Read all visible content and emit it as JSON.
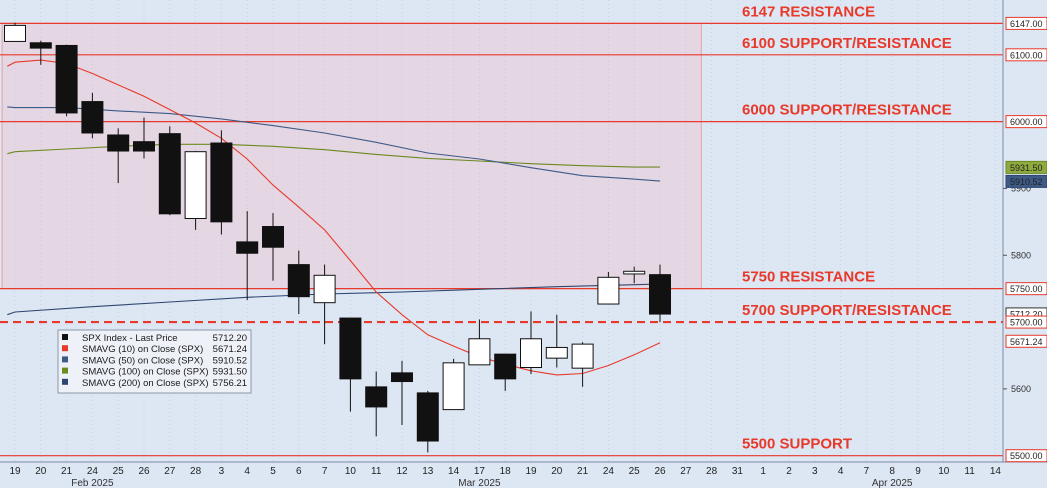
{
  "chart_data": {
    "type": "candlestick",
    "ylim": [
      5490,
      6160
    ],
    "x_labels": [
      "19",
      "20",
      "21",
      "24",
      "25",
      "26",
      "27",
      "28",
      "3",
      "4",
      "5",
      "6",
      "7",
      "10",
      "11",
      "12",
      "13",
      "14",
      "17",
      "18",
      "19",
      "20",
      "21",
      "24",
      "25",
      "26",
      "27",
      "28",
      "31",
      "1",
      "2",
      "3",
      "4",
      "7",
      "8",
      "9",
      "10",
      "11",
      "14"
    ],
    "months": [
      {
        "label": "Feb 2025",
        "at": 3
      },
      {
        "label": "Mar 2025",
        "at": 18
      },
      {
        "label": "Apr 2025",
        "at": 34
      }
    ],
    "candles": [
      {
        "date": "19",
        "o": 6120,
        "h": 6148,
        "l": 6120,
        "c": 6144
      },
      {
        "date": "20",
        "o": 6118,
        "h": 6121,
        "l": 6085,
        "c": 6110
      },
      {
        "date": "21",
        "o": 6114,
        "h": 6115,
        "l": 6008,
        "c": 6013
      },
      {
        "date": "24",
        "o": 6030,
        "h": 6043,
        "l": 5975,
        "c": 5983
      },
      {
        "date": "25",
        "o": 5980,
        "h": 5990,
        "l": 5908,
        "c": 5956
      },
      {
        "date": "26",
        "o": 5970,
        "h": 6006,
        "l": 5945,
        "c": 5956
      },
      {
        "date": "27",
        "o": 5982,
        "h": 5993,
        "l": 5860,
        "c": 5862
      },
      {
        "date": "28",
        "o": 5855,
        "h": 5956,
        "l": 5838,
        "c": 5955
      },
      {
        "date": "3",
        "o": 5968,
        "h": 5987,
        "l": 5831,
        "c": 5850
      },
      {
        "date": "4",
        "o": 5820,
        "h": 5866,
        "l": 5733,
        "c": 5803
      },
      {
        "date": "5",
        "o": 5843,
        "h": 5863,
        "l": 5762,
        "c": 5812
      },
      {
        "date": "6",
        "o": 5786,
        "h": 5807,
        "l": 5712,
        "c": 5738
      },
      {
        "date": "7",
        "o": 5729,
        "h": 5786,
        "l": 5667,
        "c": 5770
      },
      {
        "date": "10",
        "o": 5706,
        "h": 5706,
        "l": 5566,
        "c": 5615
      },
      {
        "date": "11",
        "o": 5603,
        "h": 5626,
        "l": 5529,
        "c": 5573
      },
      {
        "date": "12",
        "o": 5624,
        "h": 5642,
        "l": 5546,
        "c": 5611
      },
      {
        "date": "13",
        "o": 5594,
        "h": 5597,
        "l": 5505,
        "c": 5522
      },
      {
        "date": "14",
        "o": 5569,
        "h": 5645,
        "l": 5569,
        "c": 5639
      },
      {
        "date": "17",
        "o": 5636,
        "h": 5704,
        "l": 5636,
        "c": 5675
      },
      {
        "date": "18",
        "o": 5652,
        "h": 5652,
        "l": 5597,
        "c": 5615
      },
      {
        "date": "19",
        "o": 5632,
        "h": 5716,
        "l": 5622,
        "c": 5675
      },
      {
        "date": "20",
        "o": 5646,
        "h": 5711,
        "l": 5632,
        "c": 5662
      },
      {
        "date": "21",
        "o": 5631,
        "h": 5670,
        "l": 5603,
        "c": 5667
      },
      {
        "date": "24",
        "o": 5727,
        "h": 5775,
        "l": 5727,
        "c": 5767
      },
      {
        "date": "25",
        "o": 5772,
        "h": 5783,
        "l": 5758,
        "c": 5776
      },
      {
        "date": "26",
        "o": 5771,
        "h": 5786,
        "l": 5700,
        "c": 5712
      }
    ],
    "sma10": [
      [
        -0.3,
        6083
      ],
      [
        0,
        6089
      ],
      [
        1,
        6092
      ],
      [
        2,
        6087
      ],
      [
        3,
        6072
      ],
      [
        4,
        6055
      ],
      [
        5,
        6038
      ],
      [
        6,
        6018
      ],
      [
        7,
        5998
      ],
      [
        8,
        5975
      ],
      [
        9,
        5944
      ],
      [
        10,
        5905
      ],
      [
        11,
        5872
      ],
      [
        12,
        5838
      ],
      [
        13,
        5792
      ],
      [
        14,
        5745
      ],
      [
        15,
        5711
      ],
      [
        16,
        5681
      ],
      [
        17,
        5664
      ],
      [
        18,
        5648
      ],
      [
        19,
        5637
      ],
      [
        20,
        5627
      ],
      [
        21,
        5621
      ],
      [
        22,
        5623
      ],
      [
        23,
        5635
      ],
      [
        24,
        5651
      ],
      [
        25,
        5669
      ]
    ],
    "sma50": [
      [
        -0.3,
        6022
      ],
      [
        0,
        6021
      ],
      [
        2,
        6021
      ],
      [
        4,
        6016
      ],
      [
        6,
        6012
      ],
      [
        8,
        6004
      ],
      [
        10,
        5994
      ],
      [
        12,
        5983
      ],
      [
        14,
        5969
      ],
      [
        16,
        5953
      ],
      [
        18,
        5944
      ],
      [
        20,
        5931
      ],
      [
        22,
        5919
      ],
      [
        24,
        5914
      ],
      [
        25,
        5911
      ]
    ],
    "sma100": [
      [
        -0.3,
        5952
      ],
      [
        0,
        5955
      ],
      [
        2,
        5959
      ],
      [
        4,
        5963
      ],
      [
        6,
        5966
      ],
      [
        8,
        5966
      ],
      [
        10,
        5963
      ],
      [
        12,
        5958
      ],
      [
        14,
        5951
      ],
      [
        16,
        5945
      ],
      [
        18,
        5941
      ],
      [
        20,
        5937
      ],
      [
        22,
        5934
      ],
      [
        24,
        5932
      ],
      [
        25,
        5932
      ]
    ],
    "sma200": [
      [
        -0.3,
        5711
      ],
      [
        0,
        5715
      ],
      [
        3,
        5723
      ],
      [
        6,
        5730
      ],
      [
        9,
        5737
      ],
      [
        12,
        5742
      ],
      [
        15,
        5745
      ],
      [
        18,
        5749
      ],
      [
        21,
        5753
      ],
      [
        24,
        5756
      ],
      [
        25,
        5757
      ]
    ],
    "levels": [
      {
        "value": 6147,
        "label": "6147 RESISTANCE",
        "style": "solid"
      },
      {
        "value": 6100,
        "label": "6100 SUPPORT/RESISTANCE",
        "style": "solid"
      },
      {
        "value": 6000,
        "label": "6000 SUPPORT/RESISTANCE",
        "style": "solid"
      },
      {
        "value": 5750,
        "label": "5750 RESISTANCE",
        "style": "solid"
      },
      {
        "value": 5700,
        "label": "5700 SUPPORT/RESISTANCE",
        "style": "dashed"
      },
      {
        "value": 5500,
        "label": "5500 SUPPORT",
        "style": "solid"
      }
    ],
    "zone": {
      "from": 5750,
      "to": 6147,
      "start": -0.5,
      "end": 26.6
    },
    "y_ticks": [
      {
        "v": 5900,
        "label": "5900"
      },
      {
        "v": 5800,
        "label": "5800"
      },
      {
        "v": 5600,
        "label": "5600"
      }
    ],
    "price_tags": [
      {
        "v": 6147,
        "label": "6147.00",
        "bg": "#ffffff",
        "border": "#e8392a"
      },
      {
        "v": 6100,
        "label": "6100.00",
        "bg": "#ffffff",
        "border": "#e8392a"
      },
      {
        "v": 6000,
        "label": "6000.00",
        "bg": "#ffffff",
        "border": "#e8392a"
      },
      {
        "v": 5931.5,
        "label": "5931.50",
        "bg": "#8faa3d",
        "border": "#6b8a20"
      },
      {
        "v": 5910.52,
        "label": "5910.52",
        "bg": "#3e5a86",
        "border": "#2e4770"
      },
      {
        "v": 5750,
        "label": "5750.00",
        "bg": "#ffffff",
        "border": "#e8392a"
      },
      {
        "v": 5712.2,
        "label": "5712.20",
        "bg": "#ffffff",
        "border": "#333333"
      },
      {
        "v": 5700,
        "label": "5700.00",
        "bg": "#ffffff",
        "border": "#e8392a"
      },
      {
        "v": 5671.24,
        "label": "5671.24",
        "bg": "#ffffff",
        "border": "#e8392a"
      },
      {
        "v": 5500,
        "label": "5500.00",
        "bg": "#ffffff",
        "border": "#e8392a"
      }
    ],
    "legend": [
      {
        "name": "SPX Index - Last Price",
        "value": "5712.20",
        "color": "#111111"
      },
      {
        "name": "SMAVG (10)  on Close (SPX)",
        "value": "5671.24",
        "color": "#e8392a"
      },
      {
        "name": "SMAVG (50)  on Close (SPX)",
        "value": "5910.52",
        "color": "#3e5a86"
      },
      {
        "name": "SMAVG (100)  on Close (SPX)",
        "value": "5931.50",
        "color": "#6b8a20"
      },
      {
        "name": "SMAVG (200)  on Close (SPX)",
        "value": "5756.21",
        "color": "#2e4770"
      }
    ],
    "colors": {
      "background": "#dde6f3",
      "zone": "#e6d2e0",
      "level": "#e8392a",
      "candle": "#111111",
      "sma10": "#e8392a",
      "sma50": "#3e5a86",
      "sma100": "#6b8a20",
      "sma200": "#2e4770"
    }
  }
}
